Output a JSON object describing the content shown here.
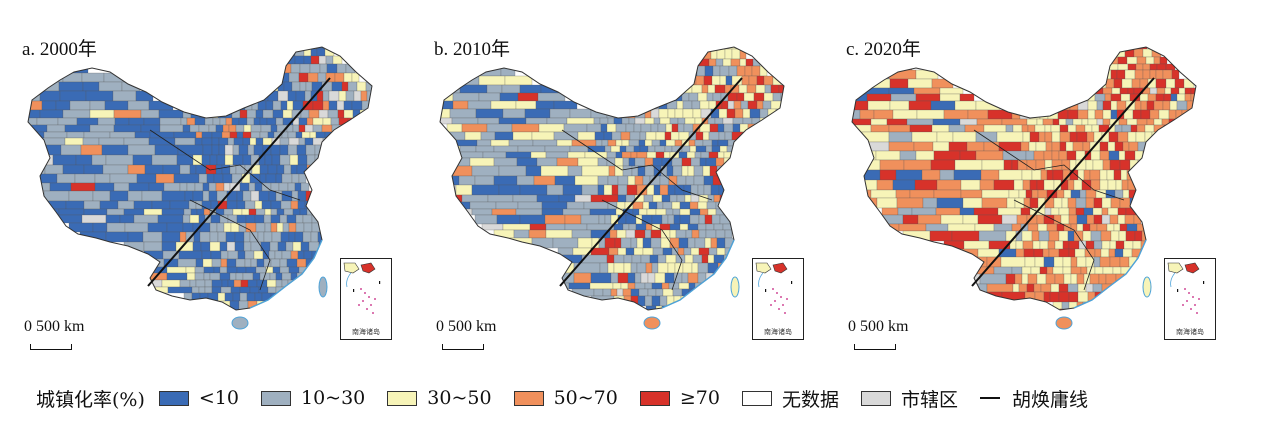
{
  "panels": [
    {
      "title": "a. 2000年",
      "scale": "0  500 km",
      "inset_label": "南海诸岛",
      "mix": [
        0.42,
        0.4,
        0.08,
        0.05,
        0.03,
        0.0,
        0.02
      ]
    },
    {
      "title": "b. 2010年",
      "scale": "0  500 km",
      "inset_label": "南海诸岛",
      "mix": [
        0.18,
        0.4,
        0.24,
        0.1,
        0.06,
        0.0,
        0.02
      ]
    },
    {
      "title": "c. 2020年",
      "scale": "0  500 km",
      "inset_label": "南海诸岛",
      "mix": [
        0.03,
        0.1,
        0.3,
        0.33,
        0.22,
        0.0,
        0.02
      ]
    }
  ],
  "legend": {
    "title": "城镇化率(%)",
    "items": [
      {
        "label": "<10",
        "color": "#3a6bb5"
      },
      {
        "label": "10~30",
        "color": "#9fb0c0"
      },
      {
        "label": "30~50",
        "color": "#f7f4b8"
      },
      {
        "label": "50~70",
        "color": "#f0905c"
      },
      {
        "label": "≥70",
        "color": "#d7322a"
      },
      {
        "label": "无数据",
        "color": "#ffffff"
      },
      {
        "label": "市辖区",
        "color": "#d9d9d9"
      }
    ],
    "line_label": "胡焕庸线"
  }
}
